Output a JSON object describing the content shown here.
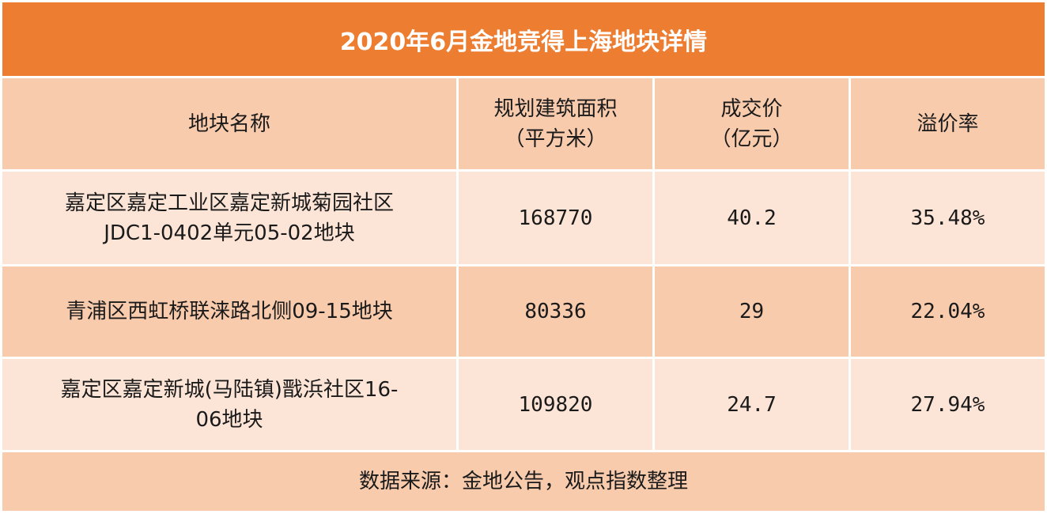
{
  "title": "2020年6月金地竞得上海地块详情",
  "columns": [
    "地块名称",
    "规划建筑面积\n（平方米）",
    "成交价\n（亿元）",
    "溢价率"
  ],
  "rows": [
    {
      "name": "嘉定区嘉定工业区嘉定新城菊园社区\nJDC1-0402单元05-02地块",
      "area": "168770",
      "price": "40.2",
      "premium": "35.48%"
    },
    {
      "name": "青浦区西虹桥联涞路北侧09-15地块",
      "area": "80336",
      "price": "29",
      "premium": "22.04%"
    },
    {
      "name": "嘉定区嘉定新城(马陆镇)戬浜社区16-\n06地块",
      "area": "109820",
      "price": "24.7",
      "premium": "27.94%"
    }
  ],
  "source": "数据来源：金地公告，观点指数整理",
  "colors": {
    "title_bg": "#ed7d31",
    "header_bg": "#f8cbad",
    "row_light_bg": "#fce4d6"
  }
}
